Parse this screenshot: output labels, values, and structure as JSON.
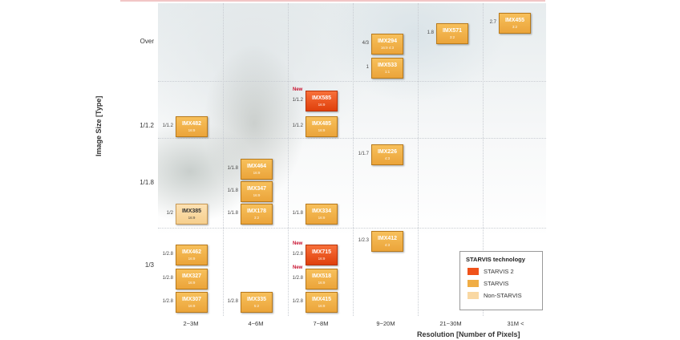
{
  "y_axis": {
    "title": "Image Size [Type]",
    "labels": [
      "Over",
      "1/1.2",
      "1/1.8",
      "1/3"
    ]
  },
  "x_axis": {
    "title": "Resolution  [Number of Pixels]",
    "labels": [
      "2~3M",
      "4~6M",
      "7~8M",
      "9~20M",
      "21~30M",
      "31M <"
    ]
  },
  "legend": {
    "title": "STARVIS technology",
    "items": [
      {
        "label": "STARVIS 2",
        "color": "#f0521a"
      },
      {
        "label": "STARVIS",
        "color": "#f0ad45"
      },
      {
        "label": "Non-STARVIS",
        "color": "#f9d8a3"
      }
    ]
  },
  "colors": {
    "starvis2": "#f0521a",
    "starvis": "#f0ad45",
    "non_starvis": "#f9d8a3"
  },
  "sensors": [
    {
      "name": "IMX455",
      "ratio": "3:2",
      "size": "2.7",
      "resolution": "31M <",
      "tech": "STARVIS",
      "new": ""
    },
    {
      "name": "IMX571",
      "ratio": "3:2",
      "size": "1.8",
      "resolution": "21~30M",
      "tech": "STARVIS",
      "new": ""
    },
    {
      "name": "IMX294",
      "ratio": "16:9 4:3",
      "size": "4/3",
      "resolution": "9~20M",
      "tech": "STARVIS",
      "new": ""
    },
    {
      "name": "IMX533",
      "ratio": "1:1",
      "size": "1",
      "resolution": "9~20M",
      "tech": "STARVIS",
      "new": ""
    },
    {
      "name": "IMX585",
      "ratio": "16:9",
      "size": "1/1.2",
      "resolution": "7~8M",
      "tech": "STARVIS 2",
      "new": "New"
    },
    {
      "name": "IMX485",
      "ratio": "16:9",
      "size": "1/1.2",
      "resolution": "7~8M",
      "tech": "STARVIS",
      "new": ""
    },
    {
      "name": "IMX482",
      "ratio": "16:9",
      "size": "1/1.2",
      "resolution": "2~3M",
      "tech": "STARVIS",
      "new": ""
    },
    {
      "name": "IMX226",
      "ratio": "4:3",
      "size": "1/1.7",
      "resolution": "9~20M",
      "tech": "STARVIS",
      "new": ""
    },
    {
      "name": "IMX464",
      "ratio": "16:9",
      "size": "1/1.8",
      "resolution": "4~6M",
      "tech": "STARVIS",
      "new": ""
    },
    {
      "name": "IMX347",
      "ratio": "16:9",
      "size": "1/1.8",
      "resolution": "4~6M",
      "tech": "STARVIS",
      "new": ""
    },
    {
      "name": "IMX178",
      "ratio": "3:2",
      "size": "1/1.8",
      "resolution": "4~6M",
      "tech": "STARVIS",
      "new": ""
    },
    {
      "name": "IMX385",
      "ratio": "16:9",
      "size": "1/2",
      "resolution": "2~3M",
      "tech": "Non-STARVIS",
      "new": ""
    },
    {
      "name": "IMX334",
      "ratio": "16:9",
      "size": "1/1.8",
      "resolution": "7~8M",
      "tech": "STARVIS",
      "new": ""
    },
    {
      "name": "IMX412",
      "ratio": "4:3",
      "size": "1/2.3",
      "resolution": "9~20M",
      "tech": "STARVIS",
      "new": ""
    },
    {
      "name": "IMX462",
      "ratio": "16:9",
      "size": "1/2.8",
      "resolution": "2~3M",
      "tech": "STARVIS",
      "new": ""
    },
    {
      "name": "IMX327",
      "ratio": "16:9",
      "size": "1/2.8",
      "resolution": "2~3M",
      "tech": "STARVIS",
      "new": ""
    },
    {
      "name": "IMX307",
      "ratio": "16:9",
      "size": "1/2.8",
      "resolution": "2~3M",
      "tech": "STARVIS",
      "new": ""
    },
    {
      "name": "IMX335",
      "ratio": "5:2",
      "size": "1/2.8",
      "resolution": "4~6M",
      "tech": "STARVIS",
      "new": ""
    },
    {
      "name": "IMX715",
      "ratio": "16:9",
      "size": "1/2.8",
      "resolution": "7~8M",
      "tech": "STARVIS 2",
      "new": "New"
    },
    {
      "name": "IMX518",
      "ratio": "16:9",
      "size": "1/2.8",
      "resolution": "7~8M",
      "tech": "STARVIS",
      "new": "New"
    },
    {
      "name": "IMX415",
      "ratio": "16:9",
      "size": "1/2.8",
      "resolution": "7~8M",
      "tech": "STARVIS",
      "new": ""
    }
  ]
}
